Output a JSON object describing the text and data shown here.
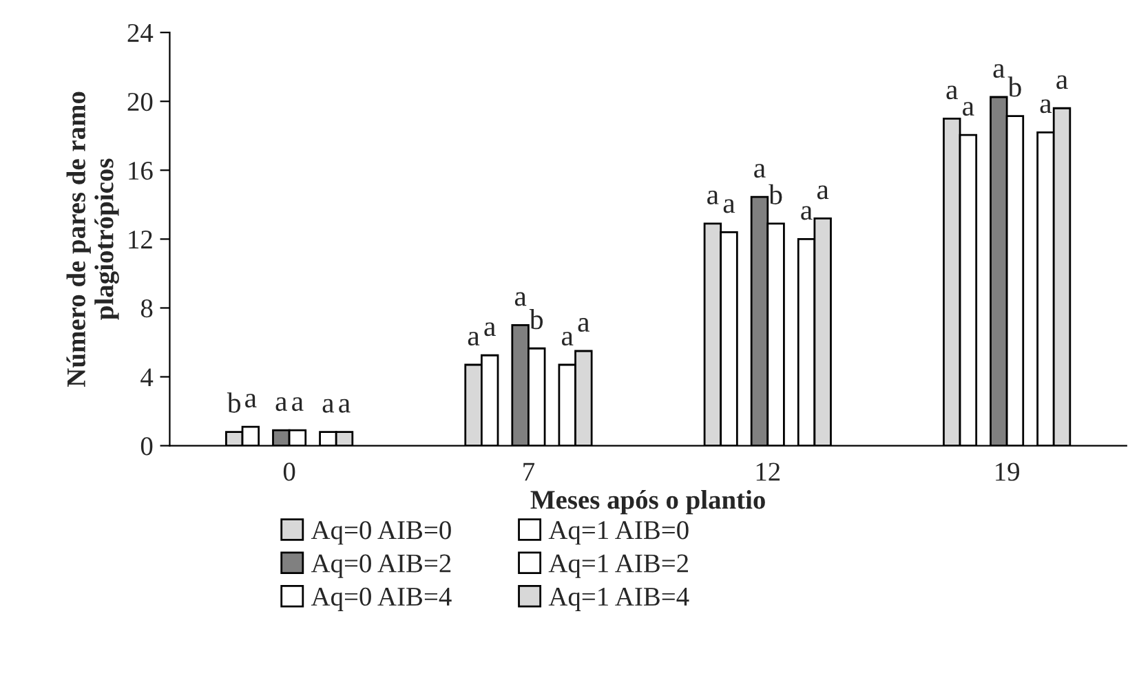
{
  "chart_data": {
    "type": "bar",
    "xlabel": "Meses após o plantio",
    "ylabel": "Número de pares de ramo\nplagiotrópicos",
    "categories": [
      "0",
      "7",
      "12",
      "19"
    ],
    "series": [
      {
        "name": "Aq=0 AIB=0",
        "color": "#d8d8d8",
        "values": [
          0.8,
          4.7,
          12.9,
          19.0
        ],
        "value_labels": [
          "b",
          "a",
          "a",
          "a"
        ]
      },
      {
        "name": "Aq=1 AIB=0",
        "color": "#ffffff",
        "values": [
          1.1,
          5.25,
          12.4,
          18.05
        ],
        "value_labels": [
          "a",
          "a",
          "a",
          "a"
        ]
      },
      {
        "name": "Aq=0 AIB=2",
        "color": "#808080",
        "values": [
          0.9,
          7.0,
          14.45,
          20.25
        ],
        "value_labels": [
          "a",
          "a",
          "a",
          "a"
        ]
      },
      {
        "name": "Aq=1 AIB=2",
        "color": "#ffffff",
        "values": [
          0.9,
          5.65,
          12.9,
          19.15
        ],
        "value_labels": [
          "a",
          "b",
          "b",
          "b"
        ]
      },
      {
        "name": "Aq=0 AIB=4",
        "color": "#ffffff",
        "values": [
          0.8,
          4.7,
          12.0,
          18.2
        ],
        "value_labels": [
          "a",
          "a",
          "a",
          "a"
        ]
      },
      {
        "name": "Aq=1 AIB=4",
        "color": "#d8d8d8",
        "values": [
          0.8,
          5.5,
          13.2,
          19.6
        ],
        "value_labels": [
          "a",
          "a",
          "a",
          "a"
        ]
      }
    ],
    "ylim": [
      0,
      24
    ],
    "yticks": [
      0,
      4,
      8,
      12,
      16,
      20,
      24
    ],
    "grid": false,
    "legend": "bottom"
  }
}
